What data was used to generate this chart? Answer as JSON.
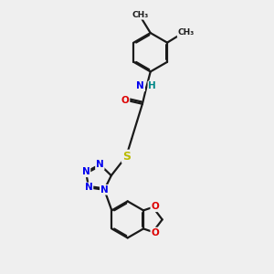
{
  "bg_color": "#efefef",
  "bond_color": "#1a1a1a",
  "bond_width": 1.6,
  "dbo": 0.055,
  "figsize": [
    3.0,
    3.0
  ],
  "dpi": 100,
  "atom_colors": {
    "N": "#0000ee",
    "O": "#dd0000",
    "S": "#bbbb00",
    "C": "#1a1a1a",
    "H": "#008888"
  },
  "afs": 7.5
}
